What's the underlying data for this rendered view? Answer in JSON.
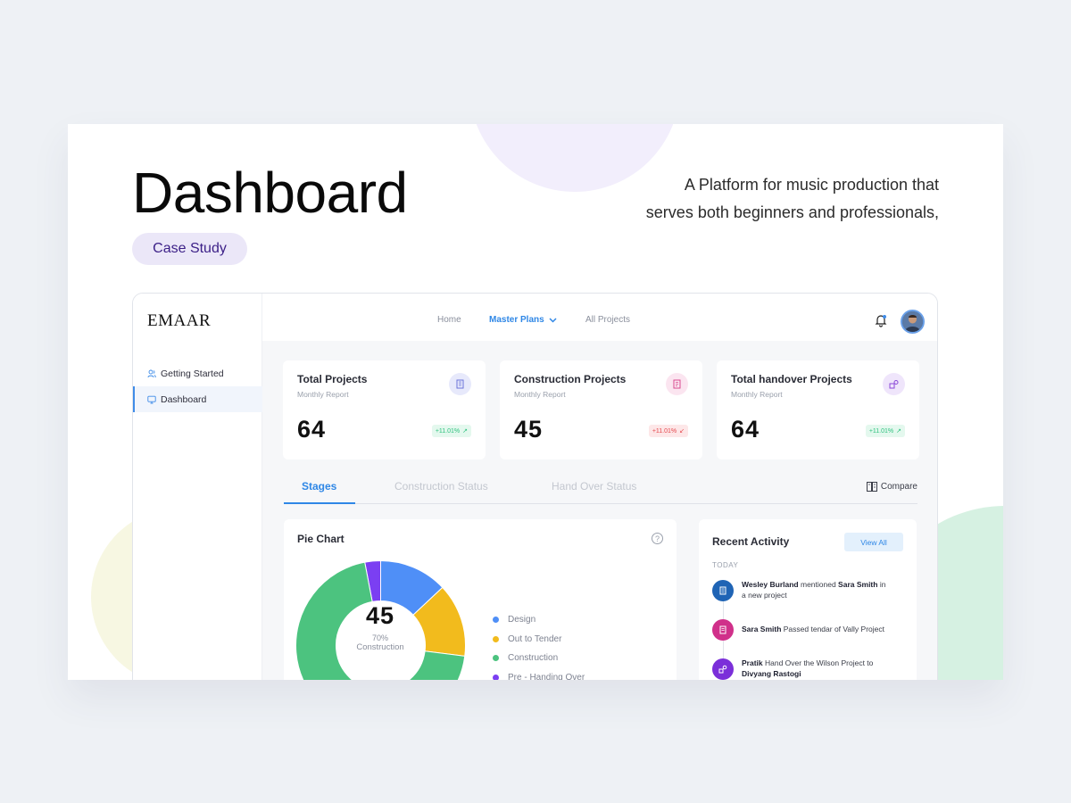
{
  "hero": {
    "title": "Dashboard",
    "pill": "Case Study",
    "desc_line1": "A Platform for music production that",
    "desc_line2": "serves both beginners and professionals,"
  },
  "app": {
    "logo": "EMAAR",
    "sidebar": [
      {
        "label": "Getting Started",
        "icon": "users-icon"
      },
      {
        "label": "Dashboard",
        "icon": "monitor-icon",
        "active": true
      }
    ],
    "nav": {
      "home": "Home",
      "master_plans": "Master Plans",
      "all_projects": "All Projects"
    },
    "stats": [
      {
        "title": "Total Projects",
        "sub": "Monthly Report",
        "value": "64",
        "badge": "+11.01%",
        "trend": "up"
      },
      {
        "title": "Construction Projects",
        "sub": "Monthly Report",
        "value": "45",
        "badge": "+11.01%",
        "trend": "down"
      },
      {
        "title": "Total handover Projects",
        "sub": "Monthly Report",
        "value": "64",
        "badge": "+11.01%",
        "trend": "up"
      }
    ],
    "tabs": [
      "Stages",
      "Construction Status",
      "Hand Over Status"
    ],
    "compare": "Compare",
    "pie": {
      "title": "Pie Chart",
      "center_value": "45",
      "center_pct": "70%",
      "center_label": "Construction"
    },
    "activity": {
      "title": "Recent Activity",
      "view_all": "View All",
      "today": "TODAY"
    }
  },
  "chart_data": {
    "type": "pie",
    "categories": [
      "Design",
      "Out to Tender",
      "Construction",
      "Pre - Handing Over"
    ],
    "values": [
      13,
      14,
      70,
      3
    ],
    "colors": [
      "#4f8ff7",
      "#f2bb1d",
      "#4cc37f",
      "#7b3ff2"
    ]
  },
  "colors": {
    "accent": "#2f87e6",
    "up": "#2ec27e",
    "down": "#e5484d"
  }
}
